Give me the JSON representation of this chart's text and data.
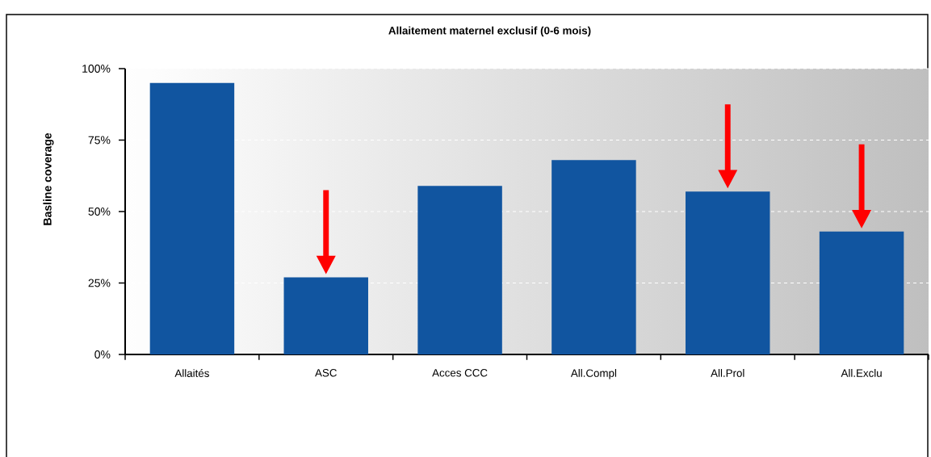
{
  "chart_data": {
    "type": "bar",
    "title": "Allaitement maternel exclusif (0-6 mois)",
    "ylabel": "Basline coverage",
    "categories": [
      "Allaités",
      "ASC",
      "Acces CCC",
      "All.Compl",
      "All.Prol",
      "All.Exclu"
    ],
    "values": [
      95,
      27,
      59,
      68,
      57,
      43
    ],
    "color": "#1155a0",
    "ylim": [
      0,
      100
    ],
    "yticks": [
      {
        "value": 0,
        "label": "0%"
      },
      {
        "value": 25,
        "label": "25%"
      },
      {
        "value": 50,
        "label": "50%"
      },
      {
        "value": 75,
        "label": "75%"
      },
      {
        "value": 100,
        "label": "100%"
      }
    ],
    "grid": "y"
  }
}
